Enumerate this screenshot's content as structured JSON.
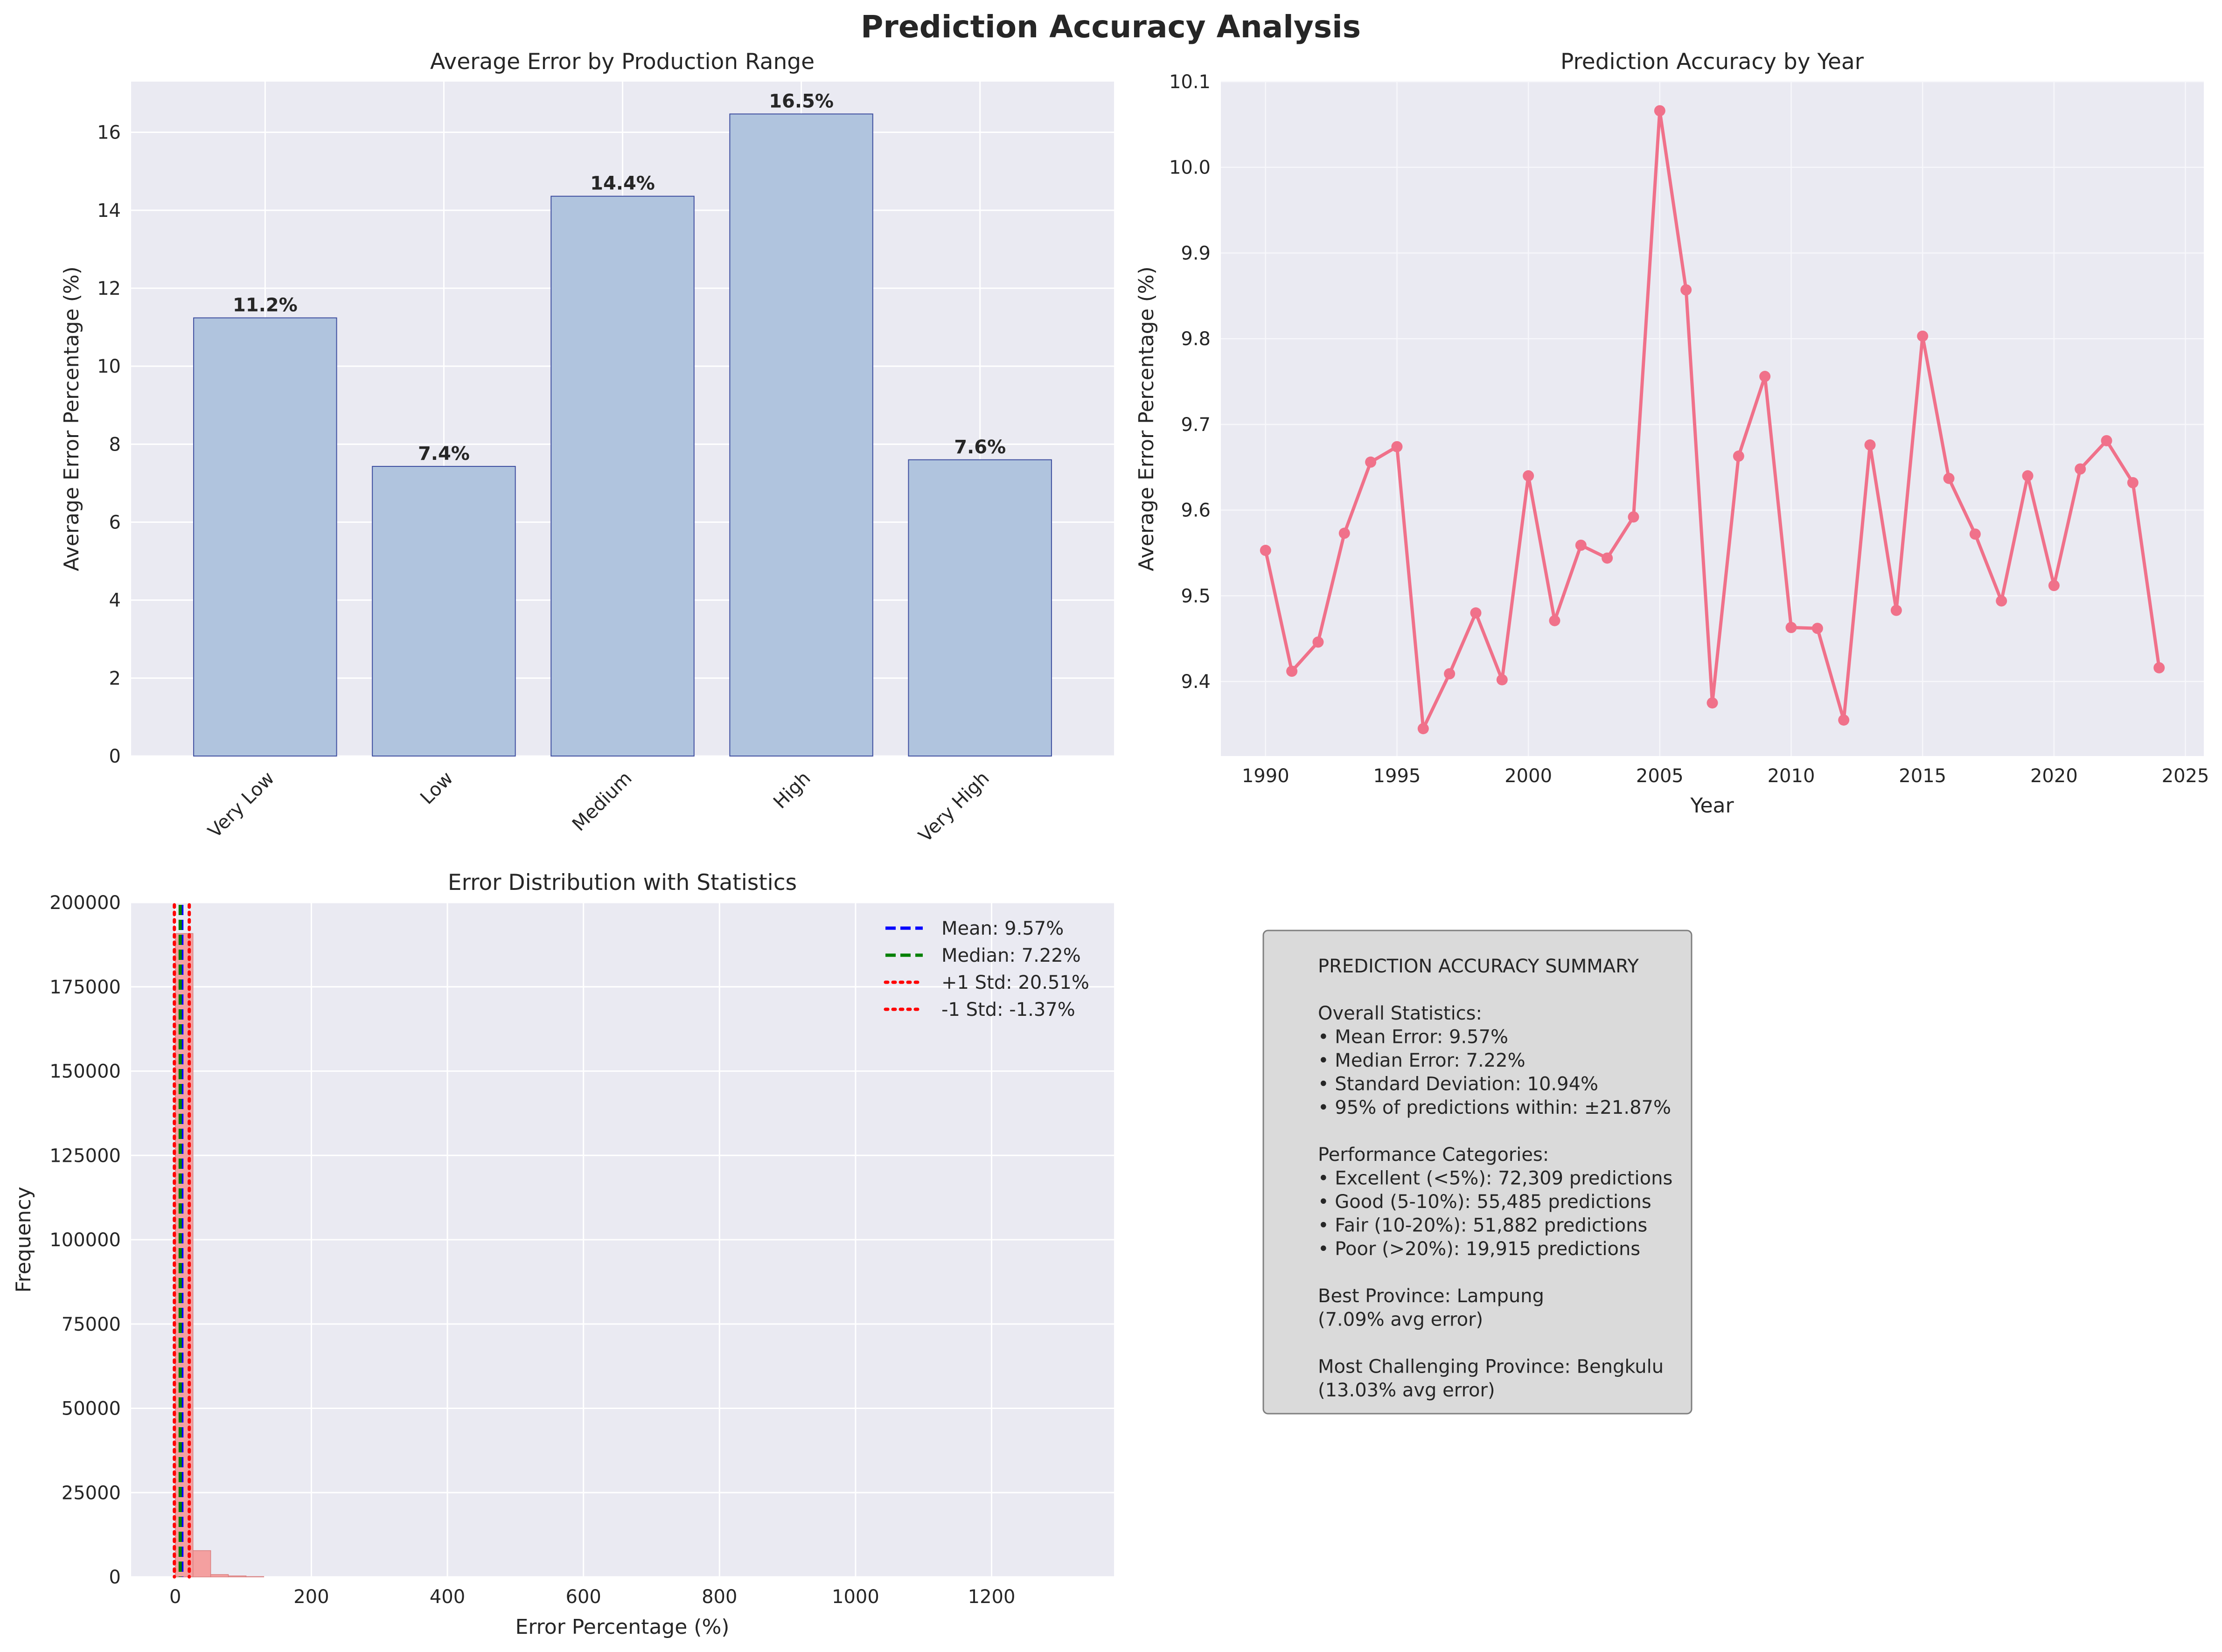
{
  "figure": {
    "title": "Prediction Accuracy Analysis"
  },
  "chart_data": [
    {
      "type": "bar",
      "title": "Average Error by Production Range",
      "xlabel": "",
      "ylabel": "Average Error Percentage (%)",
      "categories": [
        "Very Low",
        "Low",
        "Medium",
        "High",
        "Very High"
      ],
      "values": [
        11.24,
        7.43,
        14.36,
        16.47,
        7.6
      ],
      "data_labels": [
        "11.2%",
        "7.4%",
        "14.4%",
        "16.5%",
        "7.6%"
      ],
      "ylim": [
        0,
        17.3
      ],
      "yticks": [
        0,
        2,
        4,
        6,
        8,
        10,
        12,
        14,
        16
      ],
      "grid": true,
      "bar_color": "#b0c4de",
      "edge_color": "#3f4fa0"
    },
    {
      "type": "line",
      "title": "Prediction Accuracy by Year",
      "xlabel": "Year",
      "ylabel": "Average Error Percentage (%)",
      "x": [
        1990,
        1991,
        1992,
        1993,
        1994,
        1995,
        1996,
        1997,
        1998,
        1999,
        2000,
        2001,
        2002,
        2003,
        2004,
        2005,
        2006,
        2007,
        2008,
        2009,
        2010,
        2011,
        2012,
        2013,
        2014,
        2015,
        2016,
        2017,
        2018,
        2019,
        2020,
        2021,
        2022,
        2023,
        2024
      ],
      "y": [
        9.553,
        9.412,
        9.446,
        9.573,
        9.656,
        9.674,
        9.345,
        9.409,
        9.48,
        9.402,
        9.64,
        9.471,
        9.559,
        9.544,
        9.592,
        10.066,
        9.857,
        9.375,
        9.663,
        9.756,
        9.463,
        9.462,
        9.355,
        9.676,
        9.483,
        9.803,
        9.637,
        9.572,
        9.494,
        9.64,
        9.512,
        9.648,
        9.681,
        9.632,
        9.416
      ],
      "xlim": [
        1988.3,
        2025.7
      ],
      "ylim": [
        9.313,
        10.1
      ],
      "xticks": [
        1990,
        1995,
        2000,
        2005,
        2010,
        2015,
        2020,
        2025
      ],
      "yticks": [
        9.4,
        9.5,
        9.6,
        9.7,
        9.8,
        9.9,
        10.0,
        10.1
      ],
      "ytick_labels": [
        "9.4",
        "9.5",
        "9.6",
        "9.7",
        "9.8",
        "9.9",
        "10.0",
        "10.1"
      ],
      "grid": true,
      "line_color": "#f0718a"
    },
    {
      "type": "bar",
      "title": "Error Distribution with Statistics",
      "xlabel": "Error Percentage (%)",
      "ylabel": "Frequency",
      "bins": [
        {
          "start": 0,
          "end": 26,
          "count": 190800
        },
        {
          "start": 26,
          "end": 52,
          "count": 7800
        },
        {
          "start": 52,
          "end": 78,
          "count": 700
        },
        {
          "start": 78,
          "end": 104,
          "count": 300
        },
        {
          "start": 104,
          "end": 130,
          "count": 100
        }
      ],
      "xlim": [
        -65,
        1380
      ],
      "ylim": [
        0,
        200000
      ],
      "xticks": [
        0,
        200,
        400,
        600,
        800,
        1000,
        1200
      ],
      "yticks": [
        0,
        25000,
        50000,
        75000,
        100000,
        125000,
        150000,
        175000,
        200000
      ],
      "grid": true,
      "bar_color": "#f4a0a0",
      "reference_lines": [
        {
          "label": "Mean: 9.57%",
          "x": 9.57,
          "color": "#0000ff",
          "style": "dashed"
        },
        {
          "label": "Median: 7.22%",
          "x": 7.22,
          "color": "#008000",
          "style": "dashed"
        },
        {
          "label": "+1 Std: 20.51%",
          "x": 20.51,
          "color": "#ff0000",
          "style": "dotted"
        },
        {
          "label": "-1 Std: -1.37%",
          "x": -1.37,
          "color": "#ff0000",
          "style": "dotted"
        }
      ],
      "legend_position": "top-right"
    }
  ],
  "summary": {
    "lines": [
      "PREDICTION ACCURACY SUMMARY",
      "",
      "Overall Statistics:",
      "• Mean Error: 9.57%",
      "• Median Error: 7.22%",
      "• Standard Deviation: 10.94%",
      "• 95% of predictions within: ±21.87%",
      "",
      "Performance Categories:",
      "• Excellent (<5%): 72,309 predictions",
      "• Good (5-10%): 55,485 predictions",
      "• Fair (10-20%): 51,882 predictions",
      "• Poor (>20%): 19,915 predictions",
      "",
      "Best Province: Lampung",
      "(7.09% avg error)",
      "",
      "Most Challenging Province: Bengkulu",
      "(13.03% avg error)"
    ]
  }
}
